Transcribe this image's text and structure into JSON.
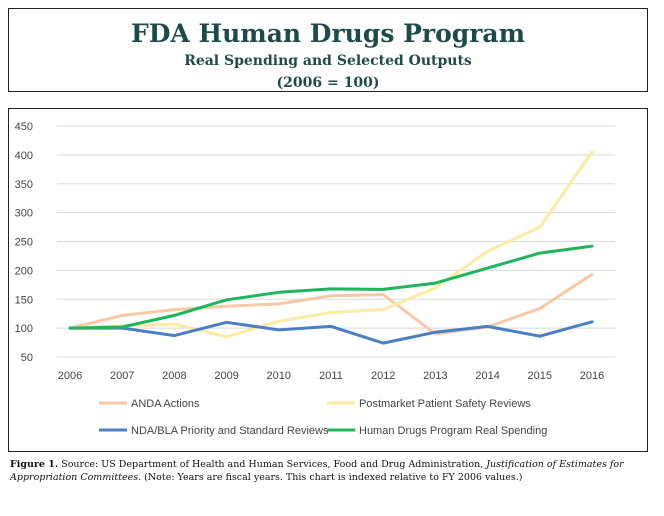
{
  "header": {
    "title": "FDA Human Drugs Program",
    "subtitle": "Real Spending and Selected Outputs",
    "subtitle2": "(2006 = 100)"
  },
  "caption": {
    "label": "Figure 1.",
    "source": " Source: US Department of Health and Human Services, Food and Drug Administration, ",
    "italic": "Justification of Estimates for Appropriation Committees.",
    "note": " (Note: Years are fiscal years. This chart is indexed relative to FY 2006 values.)"
  },
  "chart_data": {
    "type": "line",
    "x": [
      "2006",
      "2007",
      "2008",
      "2009",
      "2010",
      "2011",
      "2012",
      "2013",
      "2014",
      "2015",
      "2016"
    ],
    "ylim": [
      50,
      450
    ],
    "yticks": [
      50,
      100,
      150,
      200,
      250,
      300,
      350,
      400,
      450
    ],
    "grid": true,
    "legend_position": "bottom",
    "series": [
      {
        "name": "ANDA Actions",
        "color": "#f6c9a6",
        "values": [
          100,
          122,
          132,
          138,
          142,
          156,
          158,
          90,
          102,
          134,
          193
        ]
      },
      {
        "name": "Postmarket Patient Safety Reviews",
        "color": "#fdeaa3",
        "values": [
          100,
          104,
          107,
          85,
          112,
          127,
          132,
          170,
          233,
          275,
          405
        ]
      },
      {
        "name": "NDA/BLA Priority and Standard Reviews",
        "color": "#4b7fc4",
        "values": [
          100,
          100,
          87,
          110,
          97,
          103,
          74,
          93,
          103,
          86,
          111
        ]
      },
      {
        "name": "Human Drugs Program Real Spending",
        "color": "#1fb55a",
        "values": [
          100,
          102,
          122,
          149,
          162,
          168,
          167,
          178,
          204,
          230,
          242
        ]
      }
    ]
  }
}
